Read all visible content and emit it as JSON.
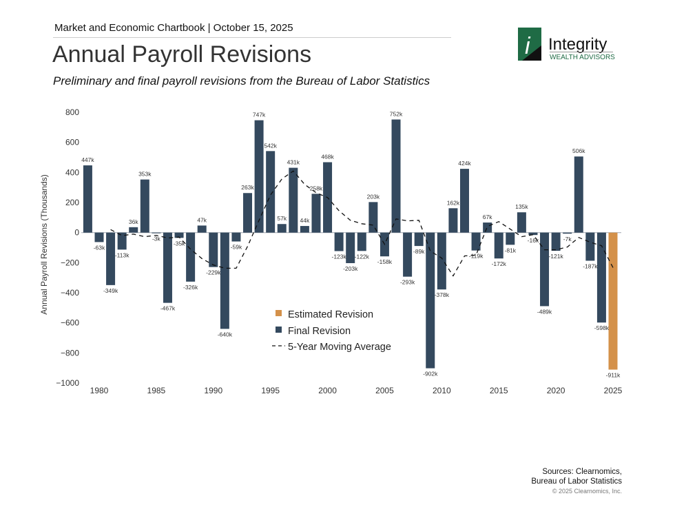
{
  "header": {
    "chartbook": "Market and Economic Chartbook | October 15, 2025",
    "title": "Annual Payroll Revisions",
    "subtitle": "Preliminary and final payroll revisions from the Bureau of Labor Statistics"
  },
  "logo": {
    "name": "Integrity",
    "tagline": "WEALTH ADVISORS"
  },
  "footer": {
    "sources_line1": "Sources: Clearnomics,",
    "sources_line2": "Bureau of Labor Statistics",
    "copyright": "© 2025 Clearnomics, Inc."
  },
  "colors": {
    "final": "#34495e",
    "estimated": "#d4914a",
    "average": "#111111",
    "zero": "#aab0b8"
  },
  "chart_data": {
    "type": "bar",
    "ylabel": "Annual Payroll Revisions (Thousands)",
    "xlabel": "",
    "ylim": [
      -1000,
      800
    ],
    "yticks": [
      800,
      600,
      400,
      200,
      0,
      -200,
      -400,
      -600,
      -800,
      -1000
    ],
    "ytick_labels": [
      "800",
      "600",
      "400",
      "200",
      "0",
      "−200",
      "−400",
      "−600",
      "−800",
      "−1000"
    ],
    "xticks": [
      1980,
      1985,
      1990,
      1995,
      2000,
      2005,
      2010,
      2015,
      2020,
      2025
    ],
    "legend": {
      "placement": "center",
      "items": [
        "Estimated Revision",
        "Final Revision",
        "5-Year Moving Average"
      ]
    },
    "years": [
      1979,
      1980,
      1981,
      1982,
      1983,
      1984,
      1985,
      1986,
      1987,
      1988,
      1989,
      1990,
      1991,
      1992,
      1993,
      1994,
      1995,
      1996,
      1997,
      1998,
      1999,
      2000,
      2001,
      2002,
      2003,
      2004,
      2005,
      2006,
      2007,
      2008,
      2009,
      2010,
      2011,
      2012,
      2013,
      2014,
      2015,
      2016,
      2017,
      2018,
      2019,
      2020,
      2021,
      2022,
      2023,
      2024,
      2025
    ],
    "values": [
      447,
      -63,
      -349,
      -113,
      36,
      353,
      -3,
      -467,
      -35,
      -326,
      47,
      -229,
      -640,
      -59,
      263,
      747,
      542,
      57,
      431,
      44,
      258,
      468,
      -123,
      -203,
      -122,
      203,
      -158,
      752,
      -293,
      -89,
      -902,
      -378,
      162,
      424,
      -119,
      67,
      -172,
      -81,
      135,
      -16,
      -489,
      -121,
      -7,
      506,
      -187,
      -598,
      -911
    ],
    "estimated_years": [
      2025
    ],
    "moving_average": {
      "years": [
        1981,
        1982,
        1983,
        1984,
        1985,
        1986,
        1987,
        1988,
        1989,
        1990,
        1991,
        1992,
        1993,
        1994,
        1995,
        1996,
        1997,
        1998,
        1999,
        2000,
        2001,
        2002,
        2003,
        2004,
        2005,
        2006,
        2007,
        2008,
        2009,
        2010,
        2011,
        2012,
        2013,
        2014,
        2015,
        2016,
        2017,
        2018,
        2019,
        2020,
        2021,
        2022,
        2023,
        2024,
        2025
      ],
      "values": [
        20,
        -20,
        -10,
        -27,
        -18,
        -36,
        -30,
        -110,
        -173,
        -215,
        -237,
        -237,
        -91,
        82,
        250,
        356,
        410,
        320,
        265,
        233,
        146,
        82,
        59,
        50,
        -78,
        91,
        78,
        82,
        -123,
        -169,
        -288,
        -155,
        -150,
        41,
        73,
        23,
        -27,
        -14,
        -114,
        -114,
        -96,
        -32,
        -64,
        -87,
        -233
      ]
    }
  }
}
